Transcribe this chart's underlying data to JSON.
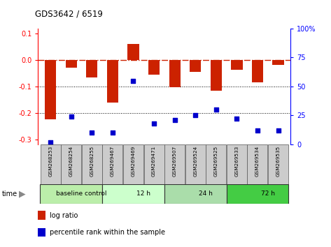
{
  "title": "GDS3642 / 6519",
  "samples": [
    "GSM268253",
    "GSM268254",
    "GSM268255",
    "GSM269467",
    "GSM269469",
    "GSM269471",
    "GSM269507",
    "GSM269524",
    "GSM269525",
    "GSM269533",
    "GSM269534",
    "GSM269535"
  ],
  "log_ratio": [
    -0.225,
    -0.03,
    -0.065,
    -0.16,
    0.062,
    -0.055,
    -0.102,
    -0.045,
    -0.115,
    -0.038,
    -0.085,
    -0.018
  ],
  "percentile_rank": [
    2,
    24,
    10,
    10,
    55,
    18,
    21,
    25,
    30,
    22,
    12,
    12
  ],
  "groups": [
    {
      "label": "baseline control",
      "start": 0,
      "end": 3
    },
    {
      "label": "12 h",
      "start": 3,
      "end": 6
    },
    {
      "label": "24 h",
      "start": 6,
      "end": 9
    },
    {
      "label": "72 h",
      "start": 9,
      "end": 12
    }
  ],
  "group_colors": [
    "#bbeeaa",
    "#ccffcc",
    "#aaddaa",
    "#44cc44"
  ],
  "bar_color": "#cc2200",
  "dot_color": "#0000cc",
  "sample_box_color": "#cccccc",
  "ylim_left": [
    -0.32,
    0.12
  ],
  "ylim_right": [
    0,
    100
  ],
  "right_ticks": [
    0,
    25,
    50,
    75,
    100
  ],
  "right_tick_labels": [
    "0",
    "25",
    "50",
    "75",
    "100%"
  ],
  "left_ticks": [
    -0.3,
    -0.2,
    -0.1,
    0.0,
    0.1
  ],
  "bar_width": 0.55,
  "hline_color": "#cc2200",
  "dotline_color": "#000000",
  "legend_items": [
    {
      "label": "log ratio",
      "color": "#cc2200"
    },
    {
      "label": "percentile rank within the sample",
      "color": "#0000cc"
    }
  ]
}
